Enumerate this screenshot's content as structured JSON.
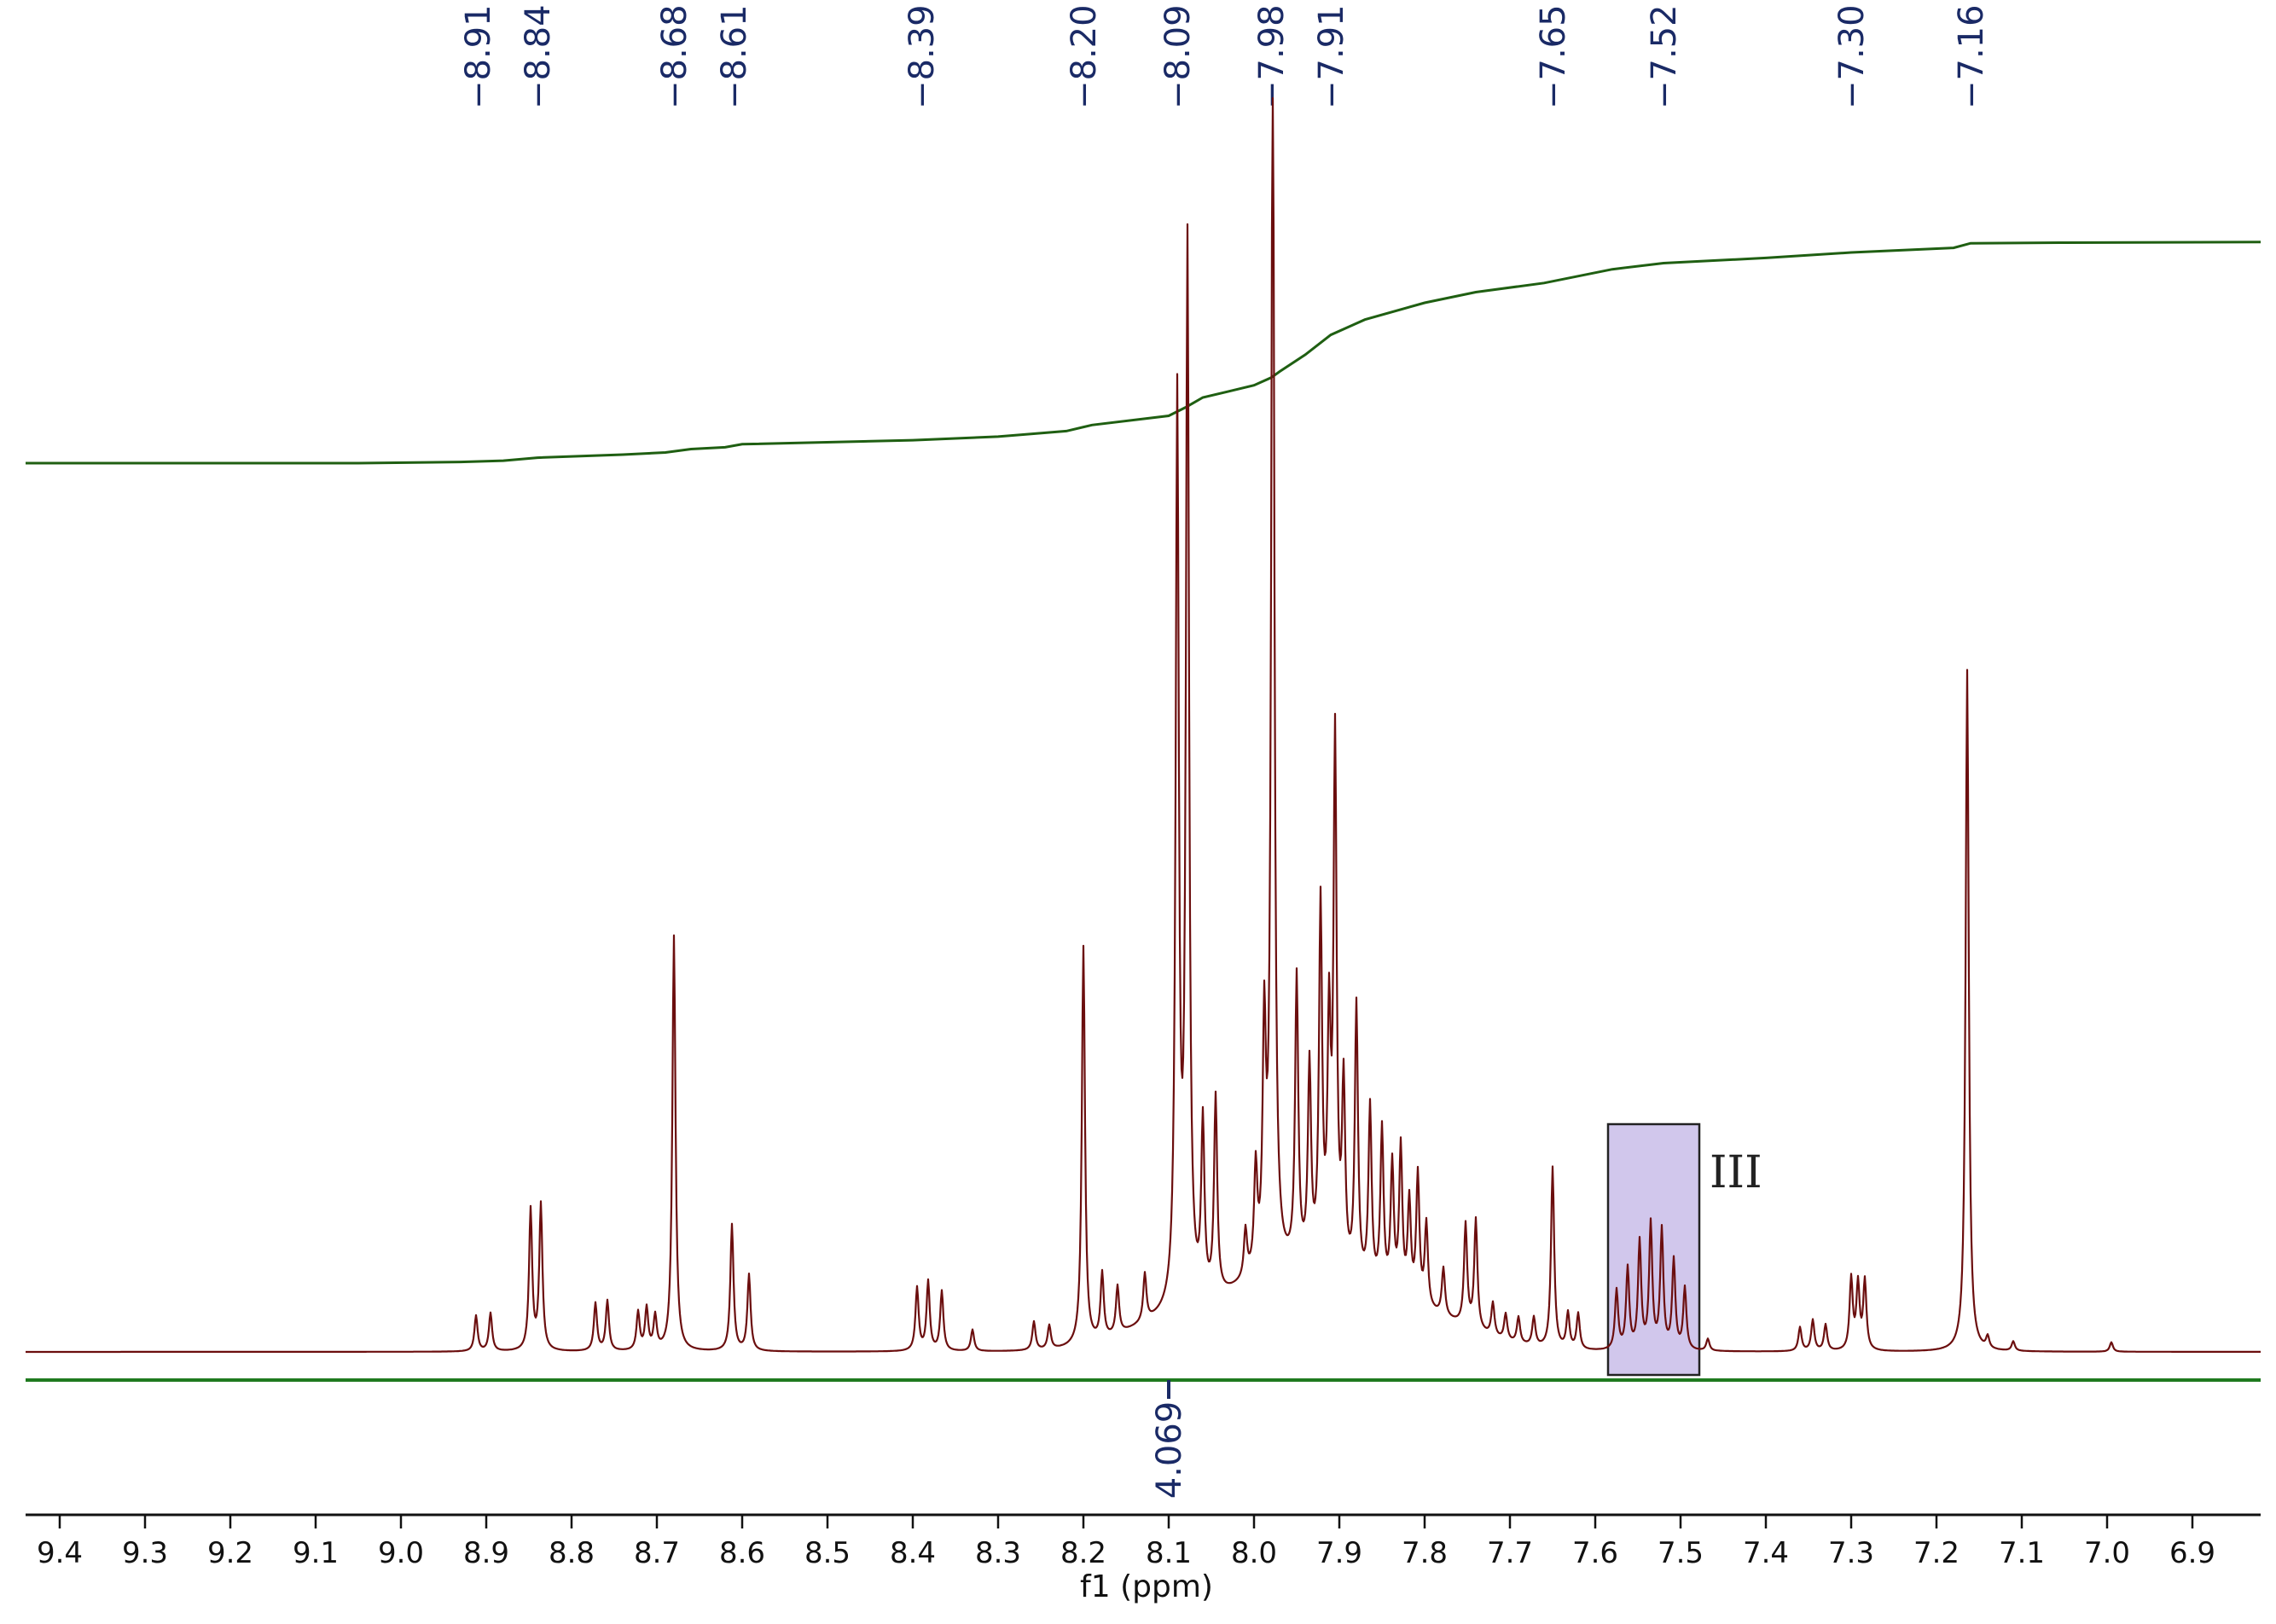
{
  "chart_data": {
    "type": "line",
    "xlabel": "f1 (ppm)",
    "x_reversed": true,
    "xlim": [
      9.44,
      6.82
    ],
    "ticks": [
      "9.4",
      "9.3",
      "9.2",
      "9.1",
      "9.0",
      "8.9",
      "8.8",
      "8.7",
      "8.6",
      "8.5",
      "8.4",
      "8.3",
      "8.2",
      "8.1",
      "8.0",
      "7.9",
      "7.8",
      "7.7",
      "7.6",
      "7.5",
      "7.4",
      "7.3",
      "7.2",
      "7.1",
      "7.0",
      "6.9"
    ],
    "peak_labels": [
      "8.91",
      "8.84",
      "8.68",
      "8.61",
      "8.39",
      "8.20",
      "8.09",
      "7.98",
      "7.91",
      "7.65",
      "7.52",
      "7.30",
      "7.16"
    ],
    "integral_value": "4.069",
    "integral_position_ppm": 8.1,
    "highlight": {
      "label": "III",
      "from_ppm": 7.585,
      "to_ppm": 7.478
    },
    "peaks": [
      {
        "ppm": 8.912,
        "h": 0.03
      },
      {
        "ppm": 8.895,
        "h": 0.032
      },
      {
        "ppm": 8.848,
        "h": 0.118
      },
      {
        "ppm": 8.836,
        "h": 0.122
      },
      {
        "ppm": 8.772,
        "h": 0.04
      },
      {
        "ppm": 8.758,
        "h": 0.042
      },
      {
        "ppm": 8.722,
        "h": 0.032
      },
      {
        "ppm": 8.712,
        "h": 0.035
      },
      {
        "ppm": 8.702,
        "h": 0.028
      },
      {
        "ppm": 8.68,
        "h": 0.348
      },
      {
        "ppm": 8.612,
        "h": 0.106
      },
      {
        "ppm": 8.592,
        "h": 0.064
      },
      {
        "ppm": 8.395,
        "h": 0.053
      },
      {
        "ppm": 8.382,
        "h": 0.058
      },
      {
        "ppm": 8.366,
        "h": 0.05
      },
      {
        "ppm": 8.33,
        "h": 0.018
      },
      {
        "ppm": 8.258,
        "h": 0.024
      },
      {
        "ppm": 8.24,
        "h": 0.02
      },
      {
        "ppm": 8.2,
        "h": 0.334
      },
      {
        "ppm": 8.178,
        "h": 0.055
      },
      {
        "ppm": 8.16,
        "h": 0.04
      },
      {
        "ppm": 8.128,
        "h": 0.04
      },
      {
        "ppm": 8.09,
        "h": 0.757
      },
      {
        "ppm": 8.078,
        "h": 0.882
      },
      {
        "ppm": 8.06,
        "h": 0.145
      },
      {
        "ppm": 8.045,
        "h": 0.165
      },
      {
        "ppm": 8.01,
        "h": 0.04
      },
      {
        "ppm": 7.998,
        "h": 0.085
      },
      {
        "ppm": 7.988,
        "h": 0.195
      },
      {
        "ppm": 7.978,
        "h": 1.04
      },
      {
        "ppm": 7.95,
        "h": 0.24
      },
      {
        "ppm": 7.935,
        "h": 0.165
      },
      {
        "ppm": 7.922,
        "h": 0.3
      },
      {
        "ppm": 7.912,
        "h": 0.195
      },
      {
        "ppm": 7.905,
        "h": 0.44
      },
      {
        "ppm": 7.895,
        "h": 0.155
      },
      {
        "ppm": 7.88,
        "h": 0.23
      },
      {
        "ppm": 7.864,
        "h": 0.15
      },
      {
        "ppm": 7.85,
        "h": 0.135
      },
      {
        "ppm": 7.838,
        "h": 0.108
      },
      {
        "ppm": 7.828,
        "h": 0.125
      },
      {
        "ppm": 7.818,
        "h": 0.082
      },
      {
        "ppm": 7.808,
        "h": 0.108
      },
      {
        "ppm": 7.798,
        "h": 0.07
      },
      {
        "ppm": 7.778,
        "h": 0.04
      },
      {
        "ppm": 7.752,
        "h": 0.085
      },
      {
        "ppm": 7.74,
        "h": 0.092
      },
      {
        "ppm": 7.72,
        "h": 0.028
      },
      {
        "ppm": 7.705,
        "h": 0.022
      },
      {
        "ppm": 7.69,
        "h": 0.022
      },
      {
        "ppm": 7.672,
        "h": 0.024
      },
      {
        "ppm": 7.65,
        "h": 0.152
      },
      {
        "ppm": 7.632,
        "h": 0.03
      },
      {
        "ppm": 7.62,
        "h": 0.03
      },
      {
        "ppm": 7.575,
        "h": 0.05
      },
      {
        "ppm": 7.562,
        "h": 0.068
      },
      {
        "ppm": 7.548,
        "h": 0.09
      },
      {
        "ppm": 7.535,
        "h": 0.105
      },
      {
        "ppm": 7.522,
        "h": 0.1
      },
      {
        "ppm": 7.508,
        "h": 0.075
      },
      {
        "ppm": 7.495,
        "h": 0.052
      },
      {
        "ppm": 7.468,
        "h": 0.01
      },
      {
        "ppm": 7.36,
        "h": 0.02
      },
      {
        "ppm": 7.345,
        "h": 0.026
      },
      {
        "ppm": 7.33,
        "h": 0.022
      },
      {
        "ppm": 7.3,
        "h": 0.06
      },
      {
        "ppm": 7.292,
        "h": 0.055
      },
      {
        "ppm": 7.284,
        "h": 0.058
      },
      {
        "ppm": 7.164,
        "h": 0.571
      },
      {
        "ppm": 7.14,
        "h": 0.01
      },
      {
        "ppm": 7.11,
        "h": 0.008
      },
      {
        "ppm": 6.995,
        "h": 0.008
      }
    ],
    "broad": [
      {
        "ppm": 7.96,
        "h": 0.06,
        "w": 0.1
      },
      {
        "ppm": 7.82,
        "h": 0.03,
        "w": 0.1
      },
      {
        "ppm": 8.1,
        "h": 0.02,
        "w": 0.08
      }
    ],
    "integral_curve": [
      [
        9.44,
        0.0
      ],
      [
        9.05,
        0.0
      ],
      [
        8.93,
        0.004
      ],
      [
        8.88,
        0.008
      ],
      [
        8.84,
        0.018
      ],
      [
        8.74,
        0.028
      ],
      [
        8.69,
        0.035
      ],
      [
        8.66,
        0.046
      ],
      [
        8.62,
        0.052
      ],
      [
        8.6,
        0.062
      ],
      [
        8.4,
        0.075
      ],
      [
        8.3,
        0.087
      ],
      [
        8.22,
        0.105
      ],
      [
        8.19,
        0.125
      ],
      [
        8.1,
        0.155
      ],
      [
        8.08,
        0.183
      ],
      [
        8.06,
        0.215
      ],
      [
        8.03,
        0.235
      ],
      [
        8.0,
        0.255
      ],
      [
        7.98,
        0.28
      ],
      [
        7.97,
        0.3
      ],
      [
        7.94,
        0.355
      ],
      [
        7.91,
        0.42
      ],
      [
        7.87,
        0.47
      ],
      [
        7.8,
        0.525
      ],
      [
        7.74,
        0.56
      ],
      [
        7.66,
        0.59
      ],
      [
        7.58,
        0.635
      ],
      [
        7.52,
        0.655
      ],
      [
        7.4,
        0.672
      ],
      [
        7.3,
        0.69
      ],
      [
        7.18,
        0.705
      ],
      [
        7.16,
        0.72
      ],
      [
        7.05,
        0.722
      ],
      [
        6.82,
        0.724
      ]
    ]
  }
}
